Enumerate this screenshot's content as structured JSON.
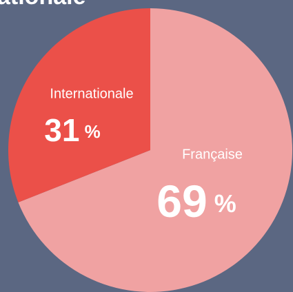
{
  "chart_data": {
    "type": "pie",
    "title": "ationale",
    "categories": [
      "Française",
      "Internationale"
    ],
    "values": [
      69,
      31
    ],
    "value_labels": [
      "69 %",
      "31 %"
    ],
    "colors": [
      "#f0a2a2",
      "#eb5049"
    ]
  }
}
